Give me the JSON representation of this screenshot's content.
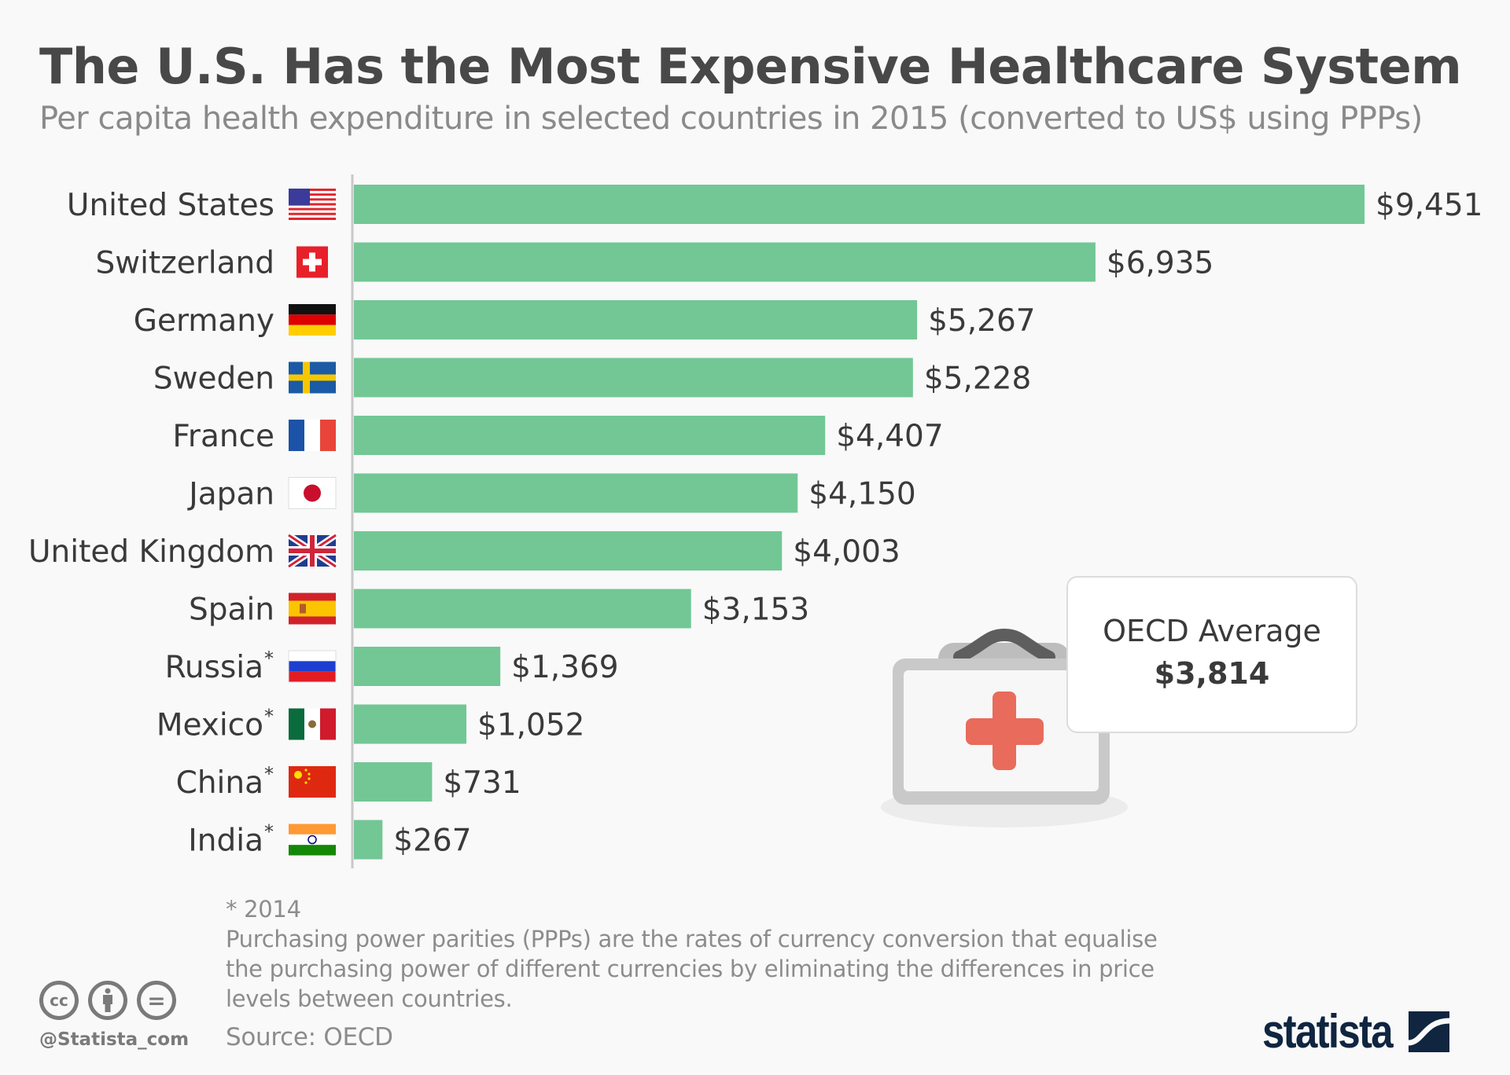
{
  "header": {
    "title": "The U.S. Has the Most Expensive Healthcare System",
    "subtitle": "Per capita health expenditure in selected countries in 2015 (converted to US$ using PPPs)"
  },
  "chart_data": {
    "type": "bar",
    "orientation": "horizontal",
    "title": "The U.S. Has the Most Expensive Healthcare System",
    "subtitle": "Per capita health expenditure in selected countries in 2015 (converted to US$ using PPPs)",
    "xlabel": "",
    "ylabel": "",
    "unit": "US$",
    "xlim": [
      0,
      9451
    ],
    "grid": false,
    "bar_color": "#72c795",
    "categories": [
      "United States",
      "Switzerland",
      "Germany",
      "Sweden",
      "France",
      "Japan",
      "United Kingdom",
      "Spain",
      "Russia",
      "Mexico",
      "China",
      "India"
    ],
    "asterisk": [
      false,
      false,
      false,
      false,
      false,
      false,
      false,
      false,
      true,
      true,
      true,
      true
    ],
    "flags": [
      "us-flag-icon",
      "switzerland-flag-icon",
      "germany-flag-icon",
      "sweden-flag-icon",
      "france-flag-icon",
      "japan-flag-icon",
      "uk-flag-icon",
      "spain-flag-icon",
      "russia-flag-icon",
      "mexico-flag-icon",
      "china-flag-icon",
      "india-flag-icon"
    ],
    "values": [
      9451,
      6935,
      5267,
      5228,
      4407,
      4150,
      4003,
      3153,
      1369,
      1052,
      731,
      267
    ],
    "value_labels": [
      "$9,451",
      "$6,935",
      "$5,267",
      "$5,228",
      "$4,407",
      "$4,150",
      "$4,003",
      "$3,153",
      "$1,369",
      "$1,052",
      "$731",
      "$267"
    ],
    "annotation": {
      "label": "OECD Average",
      "value": 3814,
      "value_label": "$3,814"
    }
  },
  "oecd": {
    "label": "OECD Average",
    "value": "$3,814"
  },
  "footnote": {
    "asterisk_note": "* 2014",
    "lines": [
      "Purchasing power parities (PPPs) are the rates of currency conversion that equalise",
      "the purchasing power of different currencies by eliminating the differences in price",
      "levels between countries."
    ],
    "source": "Source: OECD"
  },
  "branding": {
    "handle": "@Statista_com",
    "logo": "statista",
    "cc_icons": [
      "cc",
      "by",
      "nd"
    ],
    "cc_glyphs": {
      "cc": "cc",
      "nd": "="
    }
  }
}
